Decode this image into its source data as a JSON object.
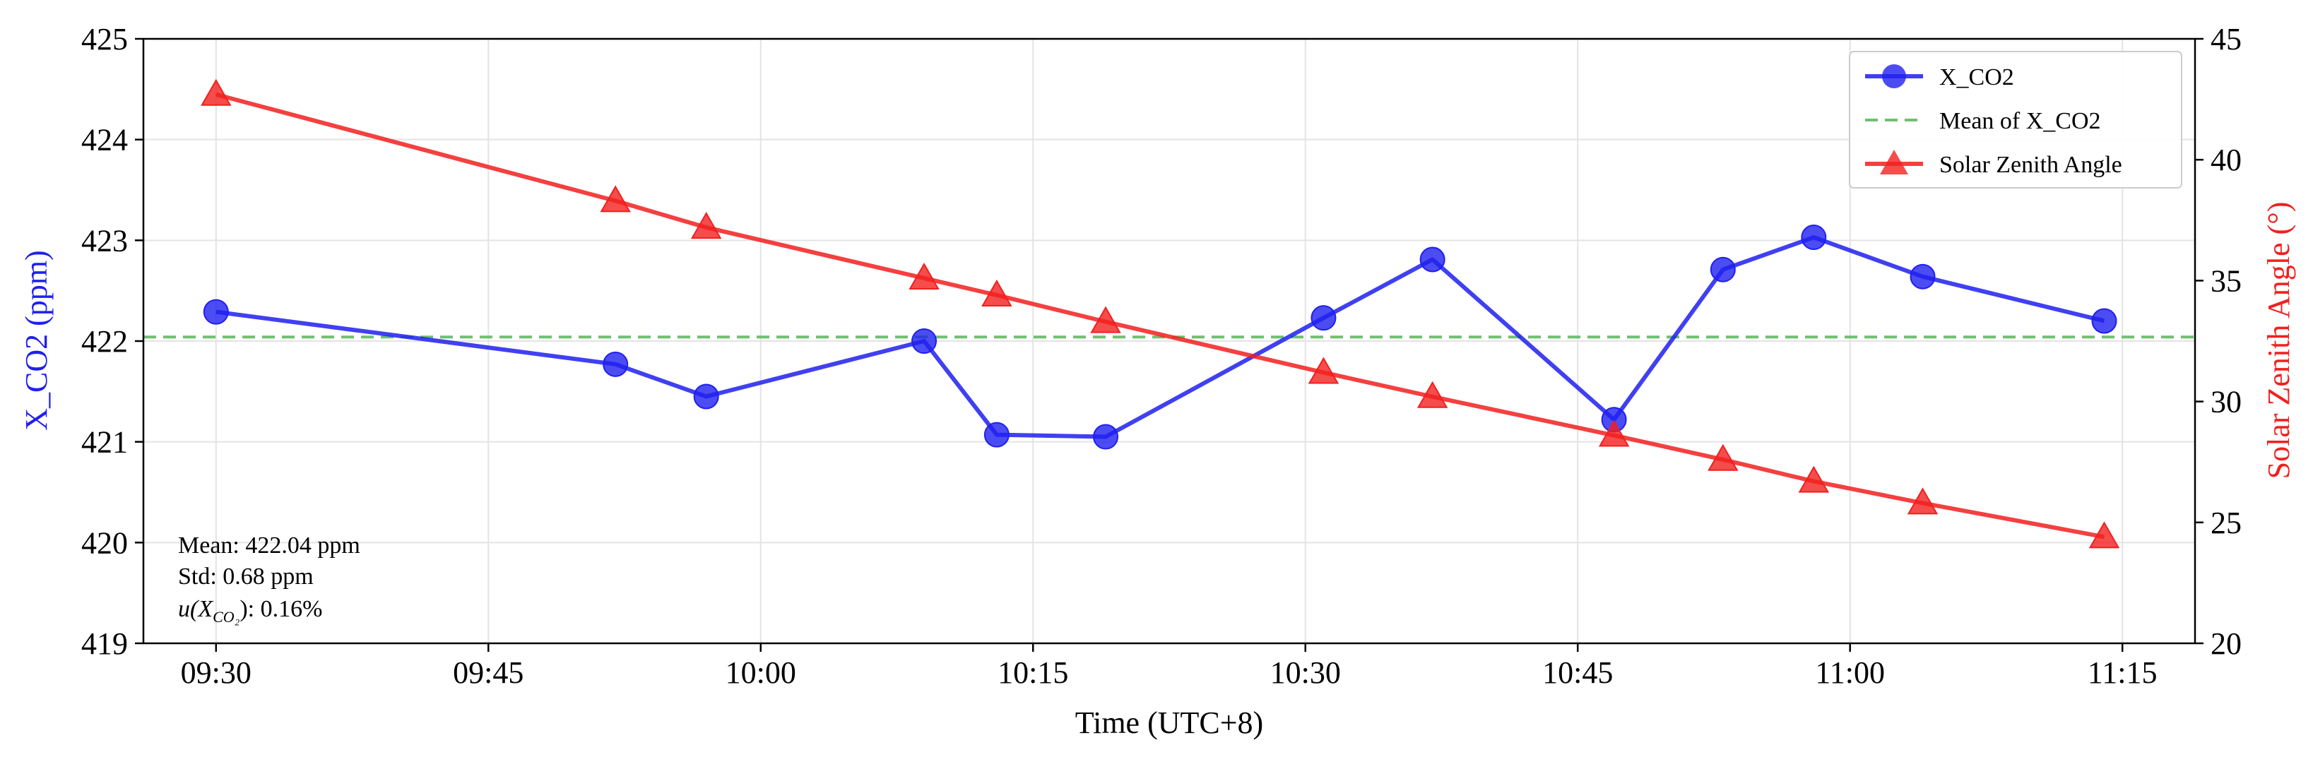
{
  "chart_data": {
    "type": "line",
    "xlabel": "Time (UTC+8)",
    "ylabel": "X_CO2 (ppm)",
    "y2label": "Solar Zenith Angle (°)",
    "ylim": [
      419,
      425
    ],
    "y2lim": [
      20,
      45
    ],
    "xlim": [
      "09:26",
      "11:19"
    ],
    "x_ticks": [
      "09:30",
      "09:45",
      "10:00",
      "10:15",
      "10:30",
      "10:45",
      "11:00",
      "11:15"
    ],
    "y_ticks": [
      "419",
      "420",
      "421",
      "422",
      "423",
      "424",
      "425"
    ],
    "y2_ticks": [
      "20",
      "25",
      "30",
      "35",
      "40",
      "45"
    ],
    "grid": true,
    "legend_position": "top-right",
    "x": [
      "09:30",
      "09:52",
      "09:57",
      "10:09",
      "10:13",
      "10:19",
      "10:31",
      "10:37",
      "10:47",
      "10:53",
      "10:58",
      "11:04",
      "11:14"
    ],
    "series": [
      {
        "name": "X_CO2",
        "axis": "left",
        "color": "#1f1ff0",
        "marker": "circle",
        "values": [
          422.29,
          421.77,
          421.45,
          422.0,
          421.07,
          421.05,
          422.23,
          422.81,
          421.22,
          422.71,
          423.03,
          422.64,
          422.2
        ]
      },
      {
        "name": "Solar Zenith Angle",
        "axis": "right",
        "color": "#f21f1f",
        "marker": "triangle",
        "values": [
          42.7,
          38.3,
          37.2,
          35.1,
          34.4,
          33.3,
          31.2,
          30.2,
          28.6,
          27.6,
          26.7,
          25.8,
          24.4
        ]
      }
    ],
    "mean_line": {
      "name": "Mean of X_CO2",
      "value": 422.04,
      "color": "#6fbf6f"
    },
    "annotation": {
      "mean_text": "Mean: 422.04 ppm",
      "std_text": "Std: 0.68 ppm",
      "u_prefix": "u(X",
      "u_sub": "CO₂",
      "u_suffix": "): 0.16%"
    },
    "colors": {
      "x_co2": "#1f1ff0",
      "sza": "#f21f1f",
      "mean": "#6fbf6f",
      "grid": "#e3e3e3"
    }
  }
}
